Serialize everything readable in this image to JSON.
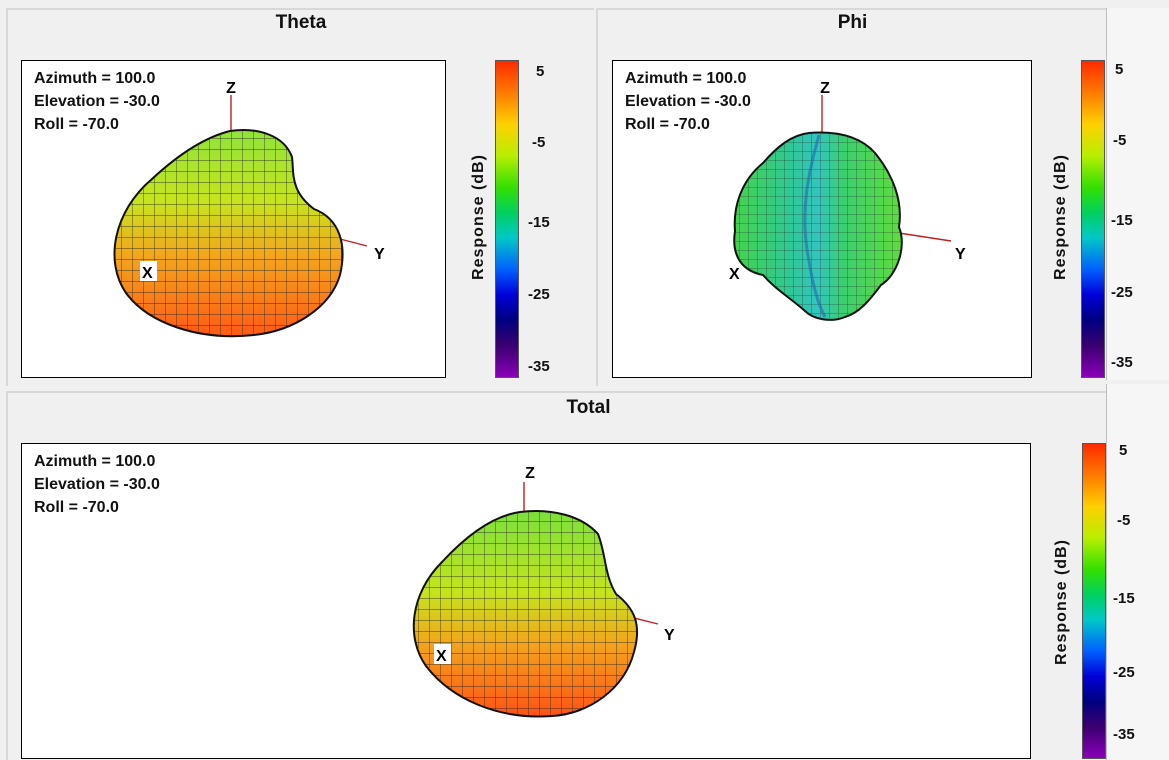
{
  "colorbar": {
    "label": "Response (dB)",
    "ticks": [
      "5",
      "-5",
      "-15",
      "-25",
      "-35"
    ]
  },
  "axes": {
    "x": "X",
    "y": "Y",
    "z": "Z"
  },
  "chart_data": [
    {
      "type": "3d-surface",
      "title": "Theta",
      "view": {
        "azimuth": "Azimuth = 100.0",
        "elevation": "Elevation = -30.0",
        "roll": "Roll = -70.0"
      },
      "colorbar": {
        "label": "Response (dB)",
        "range": [
          -35,
          5
        ],
        "ticks": [
          5,
          -5,
          -15,
          -25,
          -35
        ]
      }
    },
    {
      "type": "3d-surface",
      "title": "Phi",
      "view": {
        "azimuth": "Azimuth = 100.0",
        "elevation": "Elevation = -30.0",
        "roll": "Roll = -70.0"
      },
      "colorbar": {
        "label": "Response (dB)",
        "range": [
          -35,
          5
        ],
        "ticks": [
          5,
          -5,
          -15,
          -25,
          -35
        ]
      }
    },
    {
      "type": "3d-surface",
      "title": "Total",
      "view": {
        "azimuth": "Azimuth = 100.0",
        "elevation": "Elevation = -30.0",
        "roll": "Roll = -70.0"
      },
      "colorbar": {
        "label": "Response (dB)",
        "range": [
          -35,
          5
        ],
        "ticks": [
          5,
          -5,
          -15,
          -25,
          -35
        ]
      }
    }
  ]
}
